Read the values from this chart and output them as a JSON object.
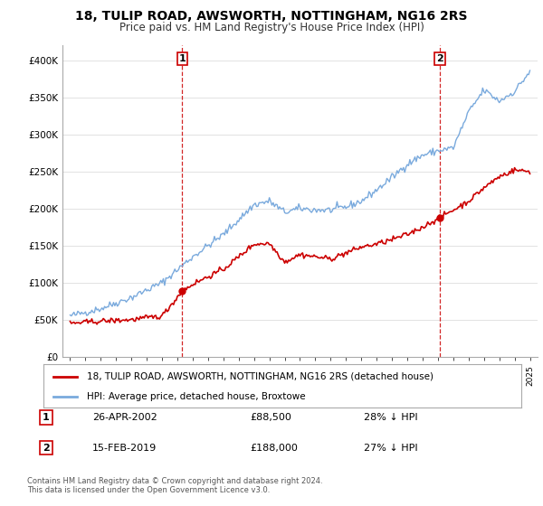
{
  "title": "18, TULIP ROAD, AWSWORTH, NOTTINGHAM, NG16 2RS",
  "subtitle": "Price paid vs. HM Land Registry's House Price Index (HPI)",
  "title_fontsize": 10,
  "subtitle_fontsize": 8.5,
  "hpi_color": "#7aaadd",
  "price_color": "#cc0000",
  "vline_color": "#cc0000",
  "ylim": [
    0,
    420000
  ],
  "yticks": [
    0,
    50000,
    100000,
    150000,
    200000,
    250000,
    300000,
    350000,
    400000
  ],
  "ytick_labels": [
    "£0",
    "£50K",
    "£100K",
    "£150K",
    "£200K",
    "£250K",
    "£300K",
    "£350K",
    "£400K"
  ],
  "xlim_start": 1994.5,
  "xlim_end": 2025.5,
  "purchase1_year": 2002.32,
  "purchase1_price": 88500,
  "purchase2_year": 2019.12,
  "purchase2_price": 188000,
  "legend_entries": [
    "18, TULIP ROAD, AWSWORTH, NOTTINGHAM, NG16 2RS (detached house)",
    "HPI: Average price, detached house, Broxtowe"
  ],
  "table_rows": [
    {
      "num": "1",
      "date": "26-APR-2002",
      "price": "£88,500",
      "pct": "28% ↓ HPI"
    },
    {
      "num": "2",
      "date": "15-FEB-2019",
      "price": "£188,000",
      "pct": "27% ↓ HPI"
    }
  ],
  "footnote": "Contains HM Land Registry data © Crown copyright and database right 2024.\nThis data is licensed under the Open Government Licence v3.0.",
  "background_color": "#ffffff",
  "grid_color": "#dddddd"
}
